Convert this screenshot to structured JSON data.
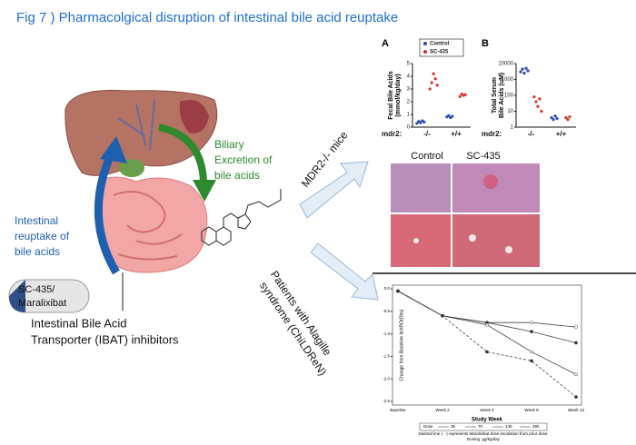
{
  "title": "Fig 7 ) Pharmacolgical disruption of intestinal bile acid reuptake",
  "diagram": {
    "biliary": [
      "Biliary",
      "Excretion of",
      "bile acids"
    ],
    "reuptake": [
      "Intestinal",
      "reuptake of",
      "bile acids"
    ],
    "drug": [
      "SC-435/",
      "Maralixibat"
    ],
    "ibat": [
      "Intestinal Bile Acid",
      "Transporter (IBAT) inhibitors"
    ],
    "mice": "MDR2-/- mice",
    "patients": [
      "Patients with Alagille",
      "syndrome (ChiLDReN)"
    ]
  },
  "histology": {
    "columns": [
      "Control",
      "SC-435"
    ]
  },
  "chart_data": [
    {
      "type": "strip",
      "panel": "A",
      "ylabel": [
        "Fecal Bile Acids",
        "(mmol/kg/day)"
      ],
      "xlabel": "mdr2:",
      "categories": [
        "-/-",
        "+/+"
      ],
      "log": false,
      "ylim": [
        0,
        5
      ],
      "yticks": [
        0,
        1,
        2,
        3,
        4,
        5
      ],
      "series": [
        {
          "name": "Control",
          "color": "#2b4cb3",
          "values": [
            [
              0.3,
              0.45,
              0.35,
              0.5,
              0.4
            ],
            [
              0.8,
              0.9,
              0.75,
              0.85
            ]
          ]
        },
        {
          "name": "SC-435",
          "color": "#d8342a",
          "values": [
            [
              3.0,
              3.5,
              4.2,
              3.8,
              3.3
            ],
            [
              2.4,
              2.6,
              2.5,
              2.55
            ]
          ]
        }
      ]
    },
    {
      "type": "strip",
      "panel": "B",
      "ylabel": [
        "Total Serum",
        "Bile Acids (uM)"
      ],
      "xlabel": "mdr2:",
      "categories": [
        "-/-",
        "+/+"
      ],
      "log": true,
      "ylim": [
        1,
        10000
      ],
      "yticks": [
        1,
        10,
        100,
        1000,
        10000
      ],
      "series": [
        {
          "name": "Control",
          "color": "#2b4cb3",
          "values": [
            [
              3000,
              4500,
              2500,
              5000,
              3500
            ],
            [
              4,
              3,
              5,
              3.5
            ]
          ]
        },
        {
          "name": "SC-435",
          "color": "#d8342a",
          "values": [
            [
              80,
              40,
              20,
              60,
              10
            ],
            [
              4,
              3,
              4.5
            ]
          ]
        }
      ]
    },
    {
      "type": "line",
      "xlabel": "Study Week",
      "ylabel": "Change from Baseline ItchRO(Obs)",
      "categories": [
        "Baseline",
        "Week 2",
        "Week 4",
        "Week 8",
        "Week 13"
      ],
      "ylim": [
        -2.5,
        0
      ],
      "yticks": [
        {
          "value": 0,
          "label": "0.0"
        },
        {
          "value": -0.5,
          "label": "-0.5"
        },
        {
          "value": -1,
          "label": "-1.0"
        },
        {
          "value": -1.5,
          "label": "-1.5"
        },
        {
          "value": -2,
          "label": "-2.0"
        },
        {
          "value": -2.5,
          "label": "-2.5"
        }
      ],
      "legend_title": "Dose",
      "series": [
        {
          "name": "35",
          "color": "#444",
          "values": [
            -0.05,
            -0.6,
            -0.75,
            -0.75,
            -0.85
          ]
        },
        {
          "name": "70",
          "color": "#444",
          "values": [
            -0.05,
            -0.6,
            -0.75,
            -0.95,
            -1.2
          ]
        },
        {
          "name": "140",
          "color": "#444",
          "values": [
            -0.05,
            -0.6,
            -0.8,
            -1.4,
            -1.9
          ]
        },
        {
          "name": "280",
          "color": "#444",
          "values": [
            -0.05,
            -0.6,
            -1.4,
            -1.6,
            -2.4
          ]
        }
      ],
      "footnote": [
        "Dashed line (- -) represents Maralixibat dose escalation from prior dose.",
        "Dosing: µg/kg/day"
      ]
    }
  ]
}
